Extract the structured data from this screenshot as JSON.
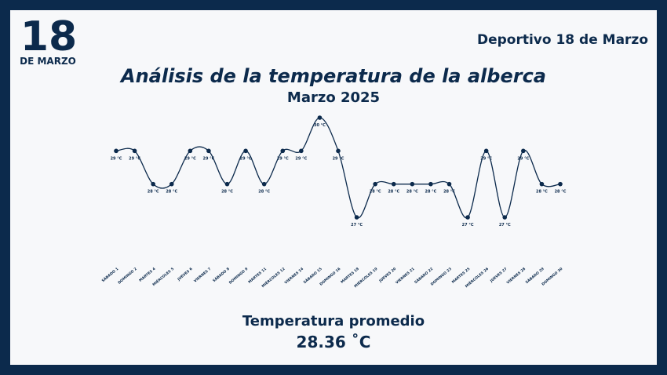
{
  "logo": {
    "number": "18",
    "text": "DE MARZO"
  },
  "header": {
    "club": "Deportivo 18 de Marzo"
  },
  "chart_data": {
    "type": "line",
    "title": "Análisis de la temperatura de la alberca",
    "subtitle": "Marzo 2025",
    "color": "#0c2a4c",
    "categories": [
      "SÁBADO 1",
      "DOMINGO 2",
      "MARTES 4",
      "MIÉRCOLES 5",
      "JUEVES 6",
      "VIERNES 7",
      "SÁBADO 8",
      "DOMINGO 9",
      "MARTES 11",
      "MIÉRCOLES 12",
      "VIERNES 14",
      "SÁBADO 15",
      "DOMINGO 16",
      "MARTES 18",
      "MIÉRCOLES 19",
      "JUEVES 20",
      "VIERNES 21",
      "SÁBADO 22",
      "DOMINGO 23",
      "MARTES 25",
      "MIÉRCOLES 26",
      "JUEVES 27",
      "VIERNES 28",
      "SÁBADO 29",
      "DOMINGO 30"
    ],
    "values": [
      29,
      29,
      28,
      28,
      29,
      29,
      28,
      29,
      28,
      29,
      29,
      30,
      29,
      27,
      28,
      28,
      28,
      28,
      28,
      27,
      29,
      27,
      29,
      28,
      28
    ],
    "value_labels": [
      "29 °C",
      "29 °C",
      "28 °C",
      "28 °C",
      "29 °C",
      "29 °C",
      "28 °C",
      "29 °C",
      "28 °C",
      "29 °C",
      "29 °C",
      "30 °C",
      "29 °C",
      "27 °C",
      "28 °C",
      "28 °C",
      "28 °C",
      "28 °C",
      "28 °C",
      "27 °C",
      "29 °C",
      "27 °C",
      "29 °C",
      "28 °C",
      "28 °C"
    ]
  },
  "summary": {
    "label": "Temperatura promedio",
    "value": "28.36 ˚C"
  }
}
